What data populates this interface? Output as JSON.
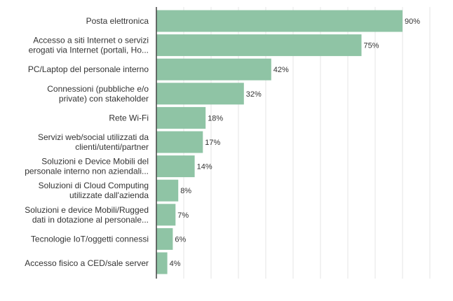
{
  "chart_data": {
    "type": "bar",
    "orientation": "horizontal",
    "categories": [
      [
        "Posta elettronica"
      ],
      [
        "Accesso a siti Internet o servizi",
        "erogati via Internet (portali, Ho..."
      ],
      [
        "PC/Laptop del personale interno"
      ],
      [
        "Connessioni (pubbliche e/o",
        "private) con stakeholder"
      ],
      [
        "Rete Wi-Fi"
      ],
      [
        "Servizi web/social utilizzati da",
        "clienti/utenti/partner"
      ],
      [
        "Soluzioni e Device Mobili del",
        "personale interno non aziendali..."
      ],
      [
        "Soluzioni di Cloud Computing",
        "utilizzate dall'azienda"
      ],
      [
        "Soluzioni e device Mobili/Rugged",
        "dati in dotazione al personale..."
      ],
      [
        "Tecnologie IoT/oggetti connessi"
      ],
      [
        "Accesso fisico a CED/sale server"
      ]
    ],
    "values": [
      90,
      75,
      42,
      32,
      18,
      17,
      14,
      8,
      7,
      6,
      4
    ],
    "value_labels": [
      "90%",
      "75%",
      "42%",
      "32%",
      "18%",
      "17%",
      "14%",
      "8%",
      "7%",
      "6%",
      "4%"
    ],
    "xlim": [
      0,
      100
    ],
    "grid": true,
    "bar_color": "#8fc4a5",
    "grid_color": "#e6e6e6",
    "axis_color": "#444444",
    "text_color": "#333333"
  }
}
